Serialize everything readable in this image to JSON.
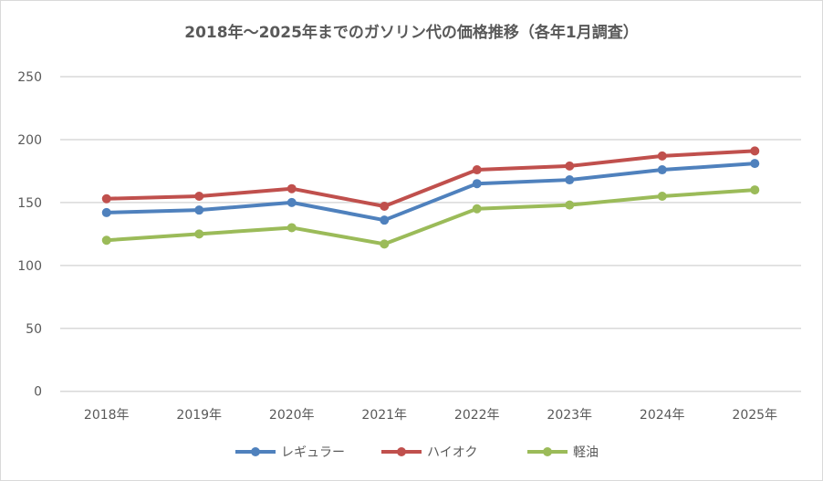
{
  "chart_data": {
    "type": "line",
    "title": "2018年～2025年までのガソリン代の価格推移（各年1月調査）",
    "xlabel": "",
    "ylabel": "",
    "categories": [
      "2018年",
      "2019年",
      "2020年",
      "2021年",
      "2022年",
      "2023年",
      "2024年",
      "2025年"
    ],
    "ylim": [
      0,
      250
    ],
    "yticks": [
      0,
      50,
      100,
      150,
      200,
      250
    ],
    "grid": true,
    "legend_position": "bottom",
    "series": [
      {
        "name": "レギュラー",
        "color": "#4f81bd",
        "values": [
          142,
          144,
          150,
          136,
          165,
          168,
          176,
          181
        ]
      },
      {
        "name": "ハイオク",
        "color": "#c0504d",
        "values": [
          153,
          155,
          161,
          147,
          176,
          179,
          187,
          191
        ]
      },
      {
        "name": "軽油",
        "color": "#9bbb59",
        "values": [
          120,
          125,
          130,
          117,
          145,
          148,
          155,
          160
        ]
      }
    ]
  }
}
